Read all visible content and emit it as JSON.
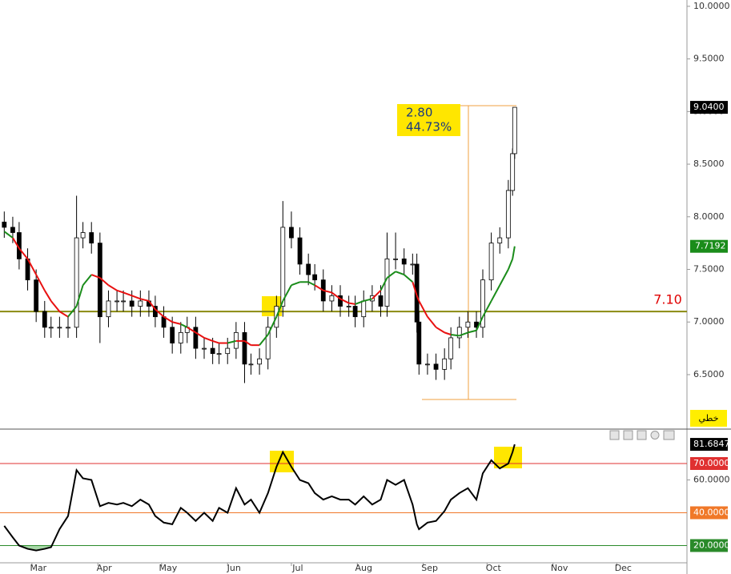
{
  "chart_data": {
    "type": "candlestick",
    "x": [
      47,
      51,
      54,
      58,
      62,
      66,
      69,
      73,
      77,
      81,
      84,
      88,
      92,
      96,
      100,
      103,
      107,
      111,
      115,
      118,
      122,
      126,
      130,
      133,
      137,
      141,
      145,
      148,
      152,
      156,
      160,
      163,
      167,
      171,
      175,
      178,
      182,
      186,
      190,
      193,
      197,
      201,
      205,
      209,
      212,
      216,
      220,
      224,
      227,
      231,
      235,
      239,
      241,
      242,
      246,
      250,
      254,
      257,
      261,
      265,
      269,
      272,
      276,
      280,
      284,
      286,
      287
    ],
    "open": [
      7.95,
      7.9,
      7.85,
      7.6,
      7.4,
      7.1,
      6.95,
      6.95,
      6.95,
      6.95,
      7.8,
      7.85,
      7.75,
      7.05,
      7.2,
      7.2,
      7.2,
      7.15,
      7.2,
      7.15,
      7.05,
      6.95,
      6.8,
      6.9,
      6.95,
      6.75,
      6.75,
      6.7,
      6.7,
      6.75,
      6.9,
      6.6,
      6.6,
      6.65,
      6.95,
      7.15,
      7.9,
      7.8,
      7.55,
      7.45,
      7.4,
      7.2,
      7.25,
      7.15,
      7.15,
      7.05,
      7.2,
      7.25,
      7.15,
      7.6,
      7.6,
      7.55,
      7.55,
      7.0,
      6.6,
      6.6,
      6.55,
      6.65,
      6.85,
      6.95,
      7.0,
      6.95,
      7.4,
      7.75,
      7.8,
      8.25,
      8.6
    ],
    "high": [
      8.05,
      8.0,
      7.95,
      7.7,
      7.5,
      7.2,
      7.05,
      7.05,
      7.05,
      8.2,
      7.95,
      7.95,
      7.85,
      7.3,
      7.3,
      7.3,
      7.3,
      7.3,
      7.3,
      7.25,
      7.15,
      7.05,
      7.0,
      7.05,
      7.05,
      6.85,
      6.85,
      6.8,
      6.85,
      7.0,
      7.0,
      6.7,
      6.75,
      7.05,
      7.25,
      8.15,
      8.05,
      7.9,
      7.65,
      7.55,
      7.5,
      7.35,
      7.35,
      7.25,
      7.25,
      7.3,
      7.35,
      7.35,
      7.85,
      7.85,
      7.7,
      7.65,
      7.65,
      7.1,
      6.7,
      6.7,
      6.75,
      6.95,
      7.05,
      7.1,
      7.1,
      7.5,
      7.85,
      7.9,
      8.35,
      8.65,
      9.04
    ],
    "low": [
      7.8,
      7.75,
      7.5,
      7.3,
      7.0,
      6.85,
      6.85,
      6.85,
      6.85,
      6.85,
      7.7,
      7.65,
      6.8,
      6.95,
      7.1,
      7.1,
      7.05,
      7.05,
      7.05,
      6.95,
      6.85,
      6.7,
      6.7,
      6.8,
      6.65,
      6.65,
      6.6,
      6.6,
      6.6,
      6.65,
      6.42,
      6.5,
      6.5,
      6.55,
      6.85,
      7.05,
      7.7,
      7.45,
      7.35,
      7.3,
      7.1,
      7.1,
      7.05,
      7.05,
      6.95,
      6.95,
      7.1,
      7.05,
      7.05,
      7.5,
      7.45,
      7.45,
      6.9,
      6.5,
      6.5,
      6.45,
      6.45,
      6.55,
      6.75,
      6.85,
      6.85,
      6.85,
      7.3,
      7.65,
      7.7,
      8.2,
      8.55
    ],
    "close": [
      7.9,
      7.85,
      7.6,
      7.4,
      7.1,
      6.95,
      6.95,
      6.95,
      6.95,
      7.8,
      7.85,
      7.75,
      7.05,
      7.2,
      7.2,
      7.2,
      7.15,
      7.2,
      7.15,
      7.05,
      6.95,
      6.8,
      6.9,
      6.95,
      6.75,
      6.75,
      6.7,
      6.7,
      6.75,
      6.9,
      6.6,
      6.6,
      6.65,
      6.95,
      7.15,
      7.9,
      7.8,
      7.55,
      7.45,
      7.4,
      7.2,
      7.25,
      7.15,
      7.15,
      7.05,
      7.2,
      7.25,
      7.15,
      7.6,
      7.6,
      7.55,
      7.55,
      7.0,
      6.6,
      6.6,
      6.55,
      6.65,
      6.85,
      6.95,
      7.0,
      6.95,
      7.4,
      7.75,
      7.8,
      8.25,
      8.6,
      9.04
    ],
    "up_color": "#ffffff",
    "down_color": "#000000",
    "ma": {
      "values": [
        7.86,
        7.8,
        7.7,
        7.6,
        7.45,
        7.3,
        7.2,
        7.1,
        7.05,
        7.15,
        7.35,
        7.45,
        7.42,
        7.35,
        7.3,
        7.28,
        7.25,
        7.22,
        7.2,
        7.12,
        7.05,
        7.0,
        6.98,
        6.95,
        6.9,
        6.85,
        6.82,
        6.8,
        6.8,
        6.82,
        6.82,
        6.78,
        6.78,
        6.88,
        7.05,
        7.2,
        7.35,
        7.38,
        7.38,
        7.35,
        7.3,
        7.28,
        7.22,
        7.18,
        7.17,
        7.2,
        7.22,
        7.3,
        7.42,
        7.48,
        7.45,
        7.38,
        7.25,
        7.2,
        7.05,
        6.95,
        6.9,
        6.88,
        6.87,
        6.9,
        6.92,
        7.05,
        7.2,
        7.35,
        7.5,
        7.6,
        7.7192
      ],
      "support_color": "#1a8c1a",
      "resistance_color": "#e81010"
    },
    "xlim": [
      45,
      368
    ],
    "ylim": [
      5.99,
      10.06
    ],
    "yticks": [
      {
        "value": 10,
        "label": "10.0000"
      },
      {
        "value": 9.5,
        "label": "9.5000"
      },
      {
        "value": 9,
        "label": "9.0000"
      },
      {
        "value": 8.5,
        "label": "8.5000"
      },
      {
        "value": 8,
        "label": "8.0000"
      },
      {
        "value": 7.5,
        "label": "7.5000"
      },
      {
        "value": 7,
        "label": "7.0000"
      },
      {
        "value": 6.5,
        "label": "6.5000"
      }
    ],
    "xticks": [
      {
        "value": 60,
        "label": "Mar"
      },
      {
        "value": 91,
        "label": "Apr"
      },
      {
        "value": 121,
        "label": "May"
      },
      {
        "value": 152,
        "label": "Jun"
      },
      {
        "value": 182,
        "label": "Jul"
      },
      {
        "value": 213,
        "label": "Aug"
      },
      {
        "value": 244,
        "label": "Sep"
      },
      {
        "value": 274,
        "label": "Oct"
      },
      {
        "value": 305,
        "label": "Nov"
      },
      {
        "value": 335,
        "label": "Dec"
      }
    ],
    "last_label": {
      "value": 9.04,
      "label": "9.0400"
    },
    "hline": {
      "value": 7.1,
      "label": "7.10",
      "color": "#8a8a10",
      "label_color": "#e00000"
    },
    "measure": {
      "change": "2.80",
      "percent": "44.73%"
    },
    "rsi": {
      "values": [
        32,
        25,
        20,
        18,
        17,
        18,
        19,
        30,
        38,
        66,
        61,
        60,
        44,
        46,
        45,
        46,
        44,
        48,
        45,
        38,
        34,
        33,
        43,
        40,
        35,
        40,
        35,
        43,
        40,
        55,
        45,
        48,
        40,
        52,
        68,
        77,
        68,
        60,
        58,
        52,
        48,
        50,
        48,
        48,
        45,
        50,
        45,
        48,
        60,
        57,
        60,
        45,
        33,
        30,
        34,
        35,
        41,
        48,
        52,
        55,
        48,
        64,
        72,
        67,
        70,
        77,
        81.6847
      ],
      "color": "#000000",
      "oversold_fill": "#a8d8a8",
      "ylim": [
        9.5,
        90.5
      ],
      "yticks": [
        {
          "value": 70,
          "label": "70.0000",
          "color": "#e03030"
        },
        {
          "value": 60,
          "label": "60.0000"
        },
        {
          "value": 40,
          "label": "40.0000",
          "color": "#f07828"
        },
        {
          "value": 20,
          "label": "20.0000",
          "color": "#2a8a2a"
        }
      ]
    }
  },
  "button": "خطي"
}
